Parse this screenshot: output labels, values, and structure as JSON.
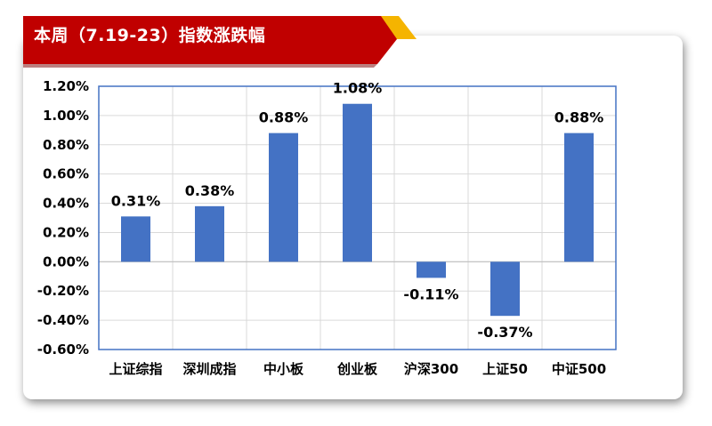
{
  "header": {
    "title": "本周（7.19-23）指数涨跌幅"
  },
  "colors": {
    "bar": "#4472C4",
    "banner_red": "#C00000",
    "banner_gold": "#F5B400",
    "grid": "#D9D9D9",
    "axis_frame": "#4472C4"
  },
  "chart_data": {
    "type": "bar",
    "categories": [
      "上证综指",
      "深圳成指",
      "中小板",
      "创业板",
      "沪深300",
      "上证50",
      "中证500"
    ],
    "values": [
      0.31,
      0.38,
      0.88,
      1.08,
      -0.11,
      -0.37,
      0.88
    ],
    "data_labels": [
      "0.31%",
      "0.38%",
      "0.88%",
      "1.08%",
      "-0.11%",
      "-0.37%",
      "0.88%"
    ],
    "ylim": [
      -0.6,
      1.2
    ],
    "yticks": [
      "1.20%",
      "1.00%",
      "0.80%",
      "0.60%",
      "0.40%",
      "0.20%",
      "0.00%",
      "-0.20%",
      "-0.40%",
      "-0.60%"
    ],
    "ytick_values": [
      1.2,
      1.0,
      0.8,
      0.6,
      0.4,
      0.2,
      0.0,
      -0.2,
      -0.4,
      -0.6
    ],
    "grid": true,
    "legend": "none"
  }
}
